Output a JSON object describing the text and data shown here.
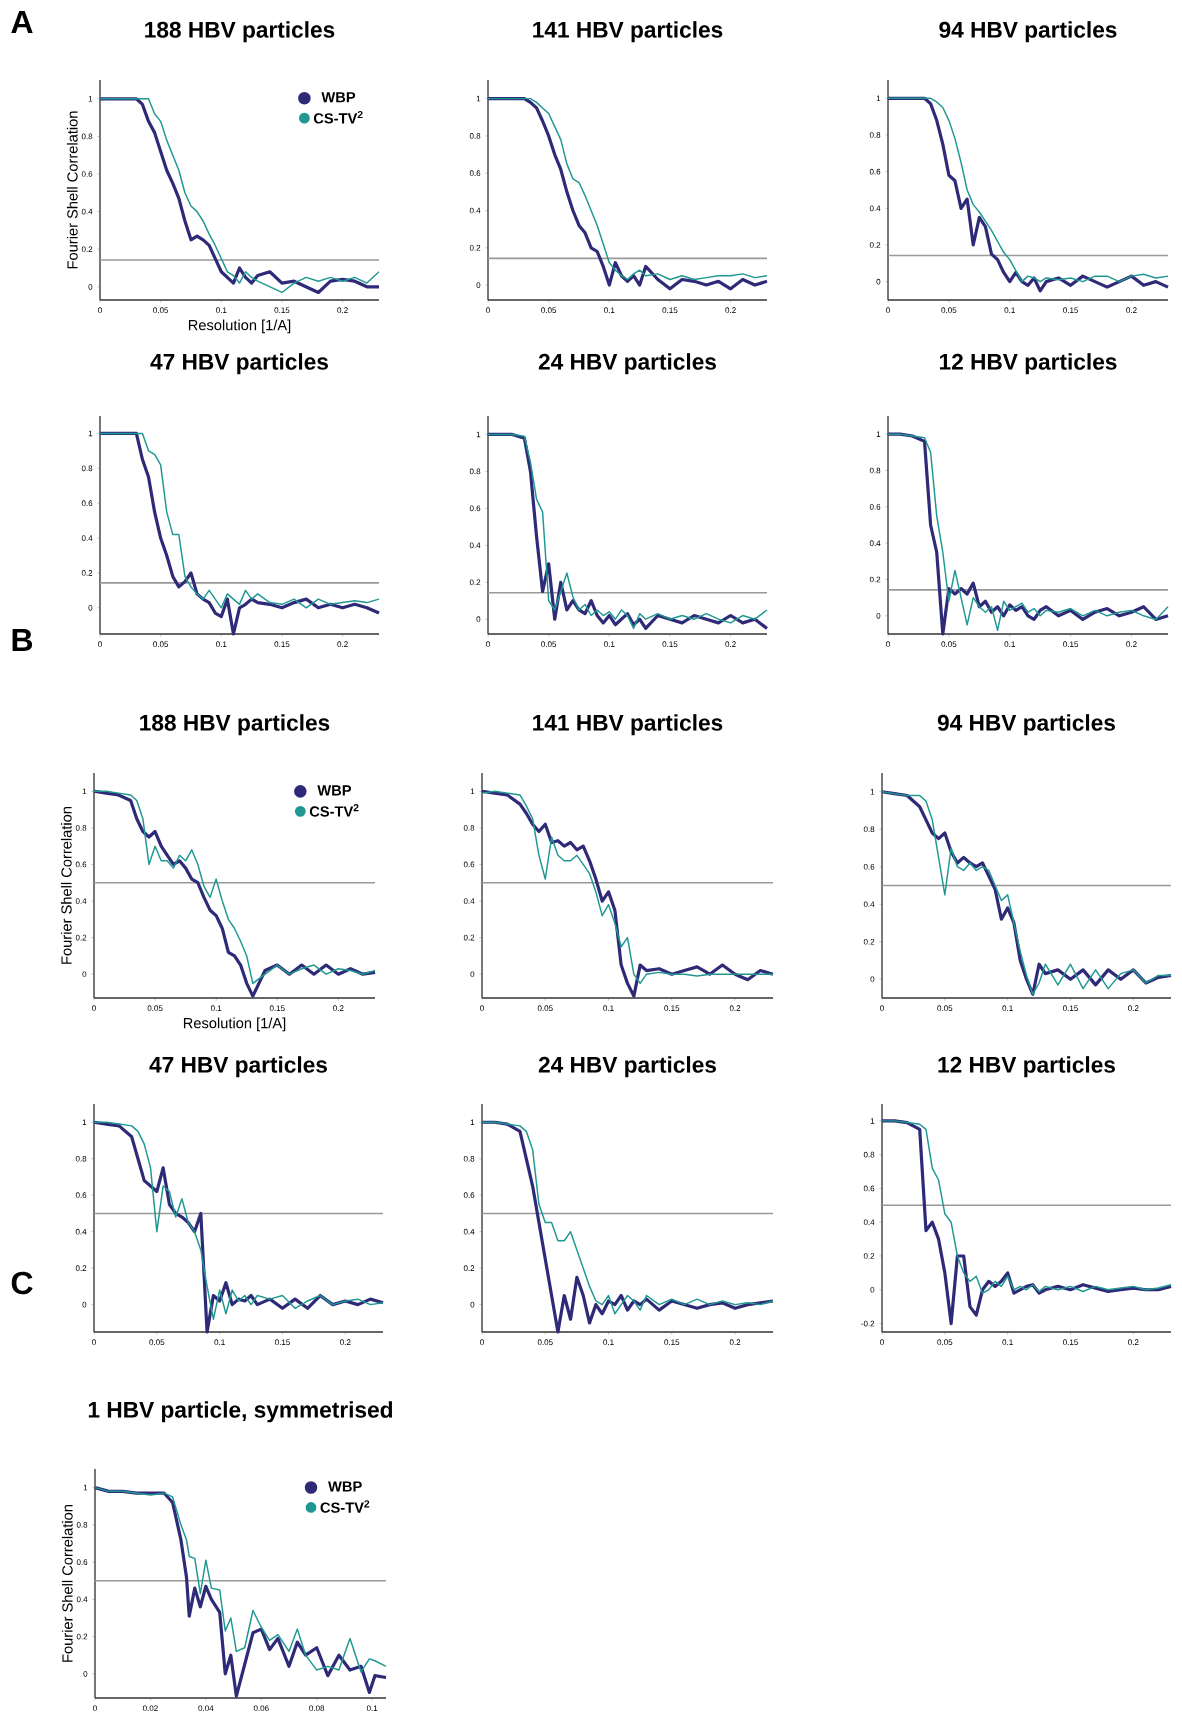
{
  "chart_data": [
    {
      "type": "line",
      "title": "188 HBV particles",
      "xlabel": "Resolution [1/A]",
      "ylabel": "Fourier Shell Correlation",
      "annotations": [
        "A"
      ],
      "legend": "top right",
      "x": [
        0,
        0.01,
        0.02,
        0.03,
        0.035,
        0.04,
        0.045,
        0.05,
        0.055,
        0.06,
        0.065,
        0.07,
        0.075,
        0.08,
        0.085,
        0.09,
        0.095,
        0.1,
        0.105,
        0.11,
        0.115,
        0.12,
        0.125,
        0.13,
        0.14,
        0.15,
        0.16,
        0.17,
        0.18,
        0.19,
        0.2,
        0.21,
        0.22,
        0.23
      ],
      "series": [
        {
          "name": "WBP",
          "color": "#2e2a78",
          "values": [
            1,
            1,
            1,
            1,
            0.97,
            0.88,
            0.82,
            0.72,
            0.62,
            0.55,
            0.47,
            0.35,
            0.25,
            0.27,
            0.25,
            0.22,
            0.15,
            0.08,
            0.05,
            0.02,
            0.1,
            0.05,
            0.02,
            0.06,
            0.08,
            0.02,
            0.03,
            0,
            -0.03,
            0.03,
            0.04,
            0.03,
            0,
            0
          ]
        },
        {
          "name": "CS-TV$^{2}$",
          "color": "#1f9892",
          "values": [
            1,
            1,
            1,
            1,
            1,
            1,
            0.92,
            0.88,
            0.78,
            0.7,
            0.62,
            0.5,
            0.43,
            0.4,
            0.35,
            0.28,
            0.22,
            0.15,
            0.08,
            0.06,
            0.02,
            0.08,
            0.05,
            0.03,
            0,
            -0.03,
            0.02,
            0.05,
            0.03,
            0.05,
            0.03,
            0.05,
            0.02,
            0.08
          ]
        }
      ],
      "xlim": [
        0,
        0.23
      ],
      "ylim": [
        -0.07,
        1.1
      ],
      "xticks": [
        0,
        0.05,
        0.1,
        0.15,
        0.2
      ],
      "yticks": [
        0,
        0.2,
        0.4,
        0.6,
        0.8,
        1
      ],
      "ref_lines": [
        {
          "axis": "y",
          "value": 0.143,
          "color": "#999999"
        }
      ]
    },
    {
      "type": "line",
      "title": "141 HBV particles",
      "x": [
        0,
        0.01,
        0.02,
        0.03,
        0.035,
        0.04,
        0.045,
        0.05,
        0.055,
        0.06,
        0.065,
        0.07,
        0.075,
        0.08,
        0.085,
        0.09,
        0.095,
        0.1,
        0.105,
        0.11,
        0.115,
        0.12,
        0.125,
        0.13,
        0.14,
        0.15,
        0.16,
        0.17,
        0.18,
        0.19,
        0.2,
        0.21,
        0.22,
        0.23
      ],
      "series": [
        {
          "color": "#2e2a78",
          "values": [
            1,
            1,
            1,
            1,
            0.98,
            0.95,
            0.88,
            0.8,
            0.7,
            0.62,
            0.5,
            0.4,
            0.32,
            0.28,
            0.2,
            0.18,
            0.1,
            0,
            0.12,
            0.05,
            0.02,
            0.05,
            0,
            0.1,
            0.03,
            -0.02,
            0.03,
            0.02,
            0,
            0.02,
            -0.02,
            0.03,
            0,
            0.02
          ]
        },
        {
          "color": "#1f9892",
          "values": [
            1,
            1,
            1,
            1,
            1,
            0.98,
            0.95,
            0.92,
            0.85,
            0.78,
            0.65,
            0.57,
            0.55,
            0.48,
            0.4,
            0.32,
            0.22,
            0.12,
            0.08,
            0.05,
            0.03,
            0.06,
            0.08,
            0.05,
            0.06,
            0.03,
            0.05,
            0.03,
            0.04,
            0.05,
            0.05,
            0.06,
            0.04,
            0.05
          ]
        }
      ],
      "xlim": [
        0,
        0.23
      ],
      "ylim": [
        -0.08,
        1.1
      ],
      "xticks": [
        0,
        0.05,
        0.1,
        0.15,
        0.2
      ],
      "yticks": [
        0,
        0.2,
        0.4,
        0.6,
        0.8,
        1
      ],
      "ref_lines": [
        {
          "axis": "y",
          "value": 0.143,
          "color": "#999999"
        }
      ]
    },
    {
      "type": "line",
      "title": "94 HBV particles",
      "x": [
        0,
        0.01,
        0.02,
        0.03,
        0.035,
        0.04,
        0.045,
        0.05,
        0.055,
        0.06,
        0.065,
        0.07,
        0.075,
        0.08,
        0.085,
        0.09,
        0.095,
        0.1,
        0.105,
        0.11,
        0.115,
        0.12,
        0.125,
        0.13,
        0.14,
        0.15,
        0.16,
        0.17,
        0.18,
        0.19,
        0.2,
        0.21,
        0.22,
        0.23
      ],
      "series": [
        {
          "color": "#2e2a78",
          "values": [
            1,
            1,
            1,
            1,
            0.97,
            0.88,
            0.75,
            0.58,
            0.55,
            0.4,
            0.45,
            0.2,
            0.35,
            0.3,
            0.15,
            0.12,
            0.05,
            0,
            0.05,
            0,
            -0.02,
            0.02,
            -0.05,
            0,
            0.02,
            -0.02,
            0.03,
            0,
            -0.03,
            0,
            0.03,
            -0.02,
            0,
            -0.03
          ]
        },
        {
          "color": "#1f9892",
          "values": [
            1,
            1,
            1,
            1,
            1,
            0.98,
            0.95,
            0.88,
            0.78,
            0.65,
            0.5,
            0.42,
            0.38,
            0.33,
            0.28,
            0.22,
            0.16,
            0.12,
            0.06,
            0,
            0.03,
            0.02,
            0,
            0.02,
            0.01,
            0.02,
            0,
            0.03,
            0.03,
            0,
            0.03,
            0.04,
            0.02,
            0.03
          ]
        }
      ],
      "xlim": [
        0,
        0.23
      ],
      "ylim": [
        -0.1,
        1.1
      ],
      "xticks": [
        0,
        0.05,
        0.1,
        0.15,
        0.2
      ],
      "yticks": [
        0,
        0.2,
        0.4,
        0.6,
        0.8,
        1
      ],
      "ref_lines": [
        {
          "axis": "y",
          "value": 0.143,
          "color": "#999999"
        }
      ]
    },
    {
      "type": "line",
      "title": "47 HBV particles",
      "x": [
        0,
        0.01,
        0.02,
        0.03,
        0.035,
        0.04,
        0.045,
        0.05,
        0.055,
        0.06,
        0.065,
        0.07,
        0.075,
        0.08,
        0.085,
        0.09,
        0.095,
        0.1,
        0.105,
        0.11,
        0.115,
        0.12,
        0.125,
        0.13,
        0.14,
        0.15,
        0.16,
        0.17,
        0.18,
        0.19,
        0.2,
        0.21,
        0.22,
        0.23
      ],
      "series": [
        {
          "color": "#2e2a78",
          "values": [
            1,
            1,
            1,
            1,
            0.85,
            0.75,
            0.55,
            0.4,
            0.3,
            0.18,
            0.12,
            0.15,
            0.2,
            0.08,
            0.05,
            0.03,
            -0.03,
            -0.05,
            0.05,
            -0.15,
            0,
            0.02,
            0.05,
            0.03,
            0.02,
            0,
            0.03,
            0.05,
            0,
            0.02,
            0,
            0.02,
            0,
            -0.03
          ]
        },
        {
          "color": "#1f9892",
          "values": [
            1,
            1,
            1,
            1,
            1,
            0.9,
            0.88,
            0.82,
            0.55,
            0.42,
            0.42,
            0.18,
            0.12,
            0.08,
            0.05,
            0.1,
            0.05,
            0,
            0.08,
            0.05,
            0.02,
            0.1,
            0.05,
            0.08,
            0.03,
            0.02,
            0.05,
            0,
            0.05,
            0.02,
            0.03,
            0.04,
            0.03,
            0.05
          ]
        }
      ],
      "xlim": [
        0,
        0.23
      ],
      "ylim": [
        -0.15,
        1.1
      ],
      "xticks": [
        0,
        0.05,
        0.1,
        0.15,
        0.2
      ],
      "yticks": [
        0,
        0.2,
        0.4,
        0.6,
        0.8,
        1
      ],
      "ref_lines": [
        {
          "axis": "y",
          "value": 0.143,
          "color": "#999999"
        }
      ]
    },
    {
      "type": "line",
      "title": "24 HBV particles",
      "x": [
        0,
        0.01,
        0.02,
        0.03,
        0.035,
        0.04,
        0.045,
        0.05,
        0.055,
        0.06,
        0.065,
        0.07,
        0.075,
        0.08,
        0.085,
        0.09,
        0.095,
        0.1,
        0.105,
        0.11,
        0.115,
        0.12,
        0.125,
        0.13,
        0.14,
        0.15,
        0.16,
        0.17,
        0.18,
        0.19,
        0.2,
        0.21,
        0.22,
        0.23
      ],
      "series": [
        {
          "color": "#2e2a78",
          "values": [
            1,
            1,
            1,
            0.98,
            0.8,
            0.45,
            0.15,
            0.3,
            0,
            0.2,
            0.05,
            0.1,
            0.05,
            0.03,
            0.1,
            0.02,
            -0.02,
            0.02,
            -0.03,
            0,
            0.03,
            -0.03,
            0,
            -0.05,
            0.02,
            0,
            -0.02,
            0.02,
            0,
            -0.02,
            0.02,
            -0.02,
            0,
            -0.05
          ]
        },
        {
          "color": "#1f9892",
          "values": [
            1,
            1,
            1,
            0.99,
            0.85,
            0.65,
            0.58,
            0.1,
            0.05,
            0.15,
            0.25,
            0.12,
            0.05,
            0.08,
            0.02,
            0.05,
            0.02,
            0.04,
            0,
            0.05,
            0.02,
            -0.05,
            0.03,
            0,
            0.03,
            0,
            0.02,
            0,
            0.03,
            0,
            -0.02,
            0.02,
            0,
            0.05
          ]
        }
      ],
      "xlim": [
        0,
        0.23
      ],
      "ylim": [
        -0.08,
        1.1
      ],
      "xticks": [
        0,
        0.05,
        0.1,
        0.15,
        0.2
      ],
      "yticks": [
        0,
        0.2,
        0.4,
        0.6,
        0.8,
        1
      ],
      "ref_lines": [
        {
          "axis": "y",
          "value": 0.143,
          "color": "#999999"
        }
      ]
    },
    {
      "type": "line",
      "title": "12 HBV particles",
      "x": [
        0,
        0.01,
        0.02,
        0.03,
        0.035,
        0.04,
        0.045,
        0.05,
        0.055,
        0.06,
        0.065,
        0.07,
        0.075,
        0.08,
        0.085,
        0.09,
        0.095,
        0.1,
        0.105,
        0.11,
        0.115,
        0.12,
        0.125,
        0.13,
        0.14,
        0.15,
        0.16,
        0.17,
        0.18,
        0.19,
        0.2,
        0.21,
        0.22,
        0.23
      ],
      "series": [
        {
          "color": "#2e2a78",
          "values": [
            1,
            1,
            0.99,
            0.96,
            0.5,
            0.35,
            -0.1,
            0.15,
            0.12,
            0.15,
            0.12,
            0.18,
            0.05,
            0.08,
            0.02,
            0.05,
            0,
            0.06,
            0.03,
            0.05,
            0,
            -0.02,
            0.03,
            0.05,
            0,
            0.03,
            -0.02,
            0.02,
            0.04,
            0,
            0.02,
            0.05,
            -0.02,
            0
          ]
        },
        {
          "color": "#1f9892",
          "values": [
            1,
            1,
            0.99,
            0.98,
            0.9,
            0.55,
            0.35,
            0.08,
            0.25,
            0.1,
            -0.05,
            0.1,
            0.05,
            0.02,
            0.05,
            -0.08,
            0.08,
            0.03,
            0.05,
            0.07,
            0.02,
            0.04,
            0,
            0.03,
            0.02,
            0.04,
            0,
            0.03,
            0,
            0.02,
            0.03,
            0,
            -0.02,
            0.05
          ]
        }
      ],
      "xlim": [
        0,
        0.23
      ],
      "ylim": [
        -0.1,
        1.1
      ],
      "xticks": [
        0,
        0.05,
        0.1,
        0.15,
        0.2
      ],
      "yticks": [
        0,
        0.2,
        0.4,
        0.6,
        0.8,
        1
      ],
      "ref_lines": [
        {
          "axis": "y",
          "value": 0.143,
          "color": "#999999"
        }
      ]
    },
    {
      "type": "line",
      "title": "188 HBV particles",
      "xlabel": "Resolution [1/A]",
      "ylabel": "Fourier Shell Correlation",
      "annotations": [
        "B"
      ],
      "legend": "top right",
      "x": [
        0,
        0.01,
        0.02,
        0.03,
        0.035,
        0.04,
        0.045,
        0.05,
        0.055,
        0.06,
        0.065,
        0.07,
        0.075,
        0.08,
        0.085,
        0.09,
        0.095,
        0.1,
        0.105,
        0.11,
        0.115,
        0.12,
        0.125,
        0.13,
        0.14,
        0.15,
        0.16,
        0.17,
        0.18,
        0.19,
        0.2,
        0.21,
        0.22,
        0.23
      ],
      "series": [
        {
          "name": "WBP",
          "color": "#2e2a78",
          "values": [
            1,
            0.99,
            0.98,
            0.95,
            0.85,
            0.78,
            0.75,
            0.78,
            0.7,
            0.65,
            0.6,
            0.62,
            0.58,
            0.52,
            0.5,
            0.42,
            0.35,
            0.32,
            0.25,
            0.12,
            0.1,
            0.05,
            -0.05,
            -0.12,
            0.02,
            0.05,
            0,
            0.05,
            0,
            0.05,
            0,
            0.03,
            0,
            0.01
          ]
        },
        {
          "name": "CS-TV$^{2}$",
          "color": "#1f9892",
          "values": [
            1,
            1,
            0.99,
            0.98,
            0.95,
            0.85,
            0.6,
            0.7,
            0.62,
            0.62,
            0.58,
            0.65,
            0.62,
            0.68,
            0.6,
            0.48,
            0.42,
            0.52,
            0.4,
            0.3,
            0.25,
            0.18,
            0.1,
            -0.05,
            0,
            0.05,
            0,
            0.03,
            0.05,
            0,
            0.03,
            0.02,
            0,
            0.02
          ]
        }
      ],
      "xlim": [
        0,
        0.23
      ],
      "ylim": [
        -0.13,
        1.1
      ],
      "xticks": [
        0,
        0.05,
        0.1,
        0.15,
        0.2
      ],
      "yticks": [
        0,
        0.2,
        0.4,
        0.6,
        0.8,
        1
      ],
      "ref_lines": [
        {
          "axis": "y",
          "value": 0.5,
          "color": "#999999"
        }
      ]
    },
    {
      "type": "line",
      "title": "141 HBV particles",
      "x": [
        0,
        0.01,
        0.02,
        0.03,
        0.035,
        0.04,
        0.045,
        0.05,
        0.055,
        0.06,
        0.065,
        0.07,
        0.075,
        0.08,
        0.085,
        0.09,
        0.095,
        0.1,
        0.105,
        0.11,
        0.115,
        0.12,
        0.125,
        0.13,
        0.14,
        0.15,
        0.16,
        0.17,
        0.18,
        0.19,
        0.2,
        0.21,
        0.22,
        0.23
      ],
      "series": [
        {
          "color": "#2e2a78",
          "values": [
            1,
            0.99,
            0.98,
            0.93,
            0.88,
            0.82,
            0.78,
            0.82,
            0.72,
            0.73,
            0.7,
            0.72,
            0.68,
            0.7,
            0.62,
            0.52,
            0.4,
            0.45,
            0.35,
            0.05,
            -0.05,
            -0.12,
            0.05,
            0.02,
            0.03,
            0,
            0.02,
            0.04,
            0,
            0.05,
            0,
            -0.03,
            0.02,
            0
          ]
        },
        {
          "color": "#1f9892",
          "values": [
            0.99,
            1,
            0.99,
            0.98,
            0.92,
            0.85,
            0.65,
            0.52,
            0.75,
            0.65,
            0.62,
            0.62,
            0.65,
            0.6,
            0.55,
            0.45,
            0.32,
            0.38,
            0.28,
            0.15,
            0.2,
            0,
            -0.05,
            0,
            0.01,
            0,
            0,
            -0.01,
            0,
            0,
            0,
            0,
            0,
            0
          ]
        }
      ],
      "xlim": [
        0,
        0.23
      ],
      "ylim": [
        -0.13,
        1.1
      ],
      "xticks": [
        0,
        0.05,
        0.1,
        0.15,
        0.2
      ],
      "yticks": [
        0,
        0.2,
        0.4,
        0.6,
        0.8,
        1
      ],
      "ref_lines": [
        {
          "axis": "y",
          "value": 0.5,
          "color": "#999999"
        }
      ]
    },
    {
      "type": "line",
      "title": "94 HBV particles",
      "x": [
        0,
        0.01,
        0.02,
        0.03,
        0.035,
        0.04,
        0.045,
        0.05,
        0.055,
        0.06,
        0.065,
        0.07,
        0.075,
        0.08,
        0.085,
        0.09,
        0.095,
        0.1,
        0.105,
        0.11,
        0.115,
        0.12,
        0.125,
        0.13,
        0.14,
        0.15,
        0.16,
        0.17,
        0.18,
        0.19,
        0.2,
        0.21,
        0.22,
        0.23
      ],
      "series": [
        {
          "color": "#2e2a78",
          "values": [
            1,
            0.99,
            0.98,
            0.92,
            0.85,
            0.78,
            0.75,
            0.78,
            0.68,
            0.62,
            0.65,
            0.62,
            0.6,
            0.62,
            0.55,
            0.48,
            0.32,
            0.38,
            0.3,
            0.1,
            0,
            -0.08,
            0.08,
            0.03,
            0.05,
            0,
            0.05,
            -0.03,
            0.05,
            0,
            0.05,
            -0.02,
            0.01,
            0.02
          ]
        },
        {
          "color": "#1f9892",
          "values": [
            1,
            0.99,
            0.98,
            0.98,
            0.95,
            0.85,
            0.65,
            0.45,
            0.7,
            0.6,
            0.58,
            0.62,
            0.58,
            0.6,
            0.58,
            0.5,
            0.42,
            0.45,
            0.3,
            0.15,
            0.02,
            -0.08,
            -0.02,
            0.08,
            -0.03,
            0.08,
            -0.05,
            0.05,
            -0.05,
            0.03,
            0.05,
            -0.02,
            0.02,
            0.02
          ]
        }
      ],
      "xlim": [
        0,
        0.23
      ],
      "ylim": [
        -0.1,
        1.1
      ],
      "xticks": [
        0,
        0.05,
        0.1,
        0.15,
        0.2
      ],
      "yticks": [
        0,
        0.2,
        0.4,
        0.6,
        0.8,
        1
      ],
      "ref_lines": [
        {
          "axis": "y",
          "value": 0.5,
          "color": "#999999"
        }
      ]
    },
    {
      "type": "line",
      "title": "47 HBV particles",
      "x": [
        0,
        0.01,
        0.02,
        0.03,
        0.035,
        0.04,
        0.045,
        0.05,
        0.055,
        0.06,
        0.065,
        0.07,
        0.075,
        0.08,
        0.085,
        0.09,
        0.095,
        0.1,
        0.105,
        0.11,
        0.115,
        0.12,
        0.125,
        0.13,
        0.14,
        0.15,
        0.16,
        0.17,
        0.18,
        0.19,
        0.2,
        0.21,
        0.22,
        0.23
      ],
      "series": [
        {
          "color": "#2e2a78",
          "values": [
            1,
            0.99,
            0.98,
            0.92,
            0.8,
            0.68,
            0.65,
            0.62,
            0.75,
            0.55,
            0.5,
            0.48,
            0.45,
            0.4,
            0.5,
            -0.15,
            0.05,
            0.02,
            0.12,
            0,
            0.03,
            0.02,
            0.05,
            0,
            0.03,
            -0.02,
            0.03,
            -0.02,
            0.05,
            0,
            0.02,
            0,
            0.03,
            0.01
          ]
        },
        {
          "color": "#1f9892",
          "values": [
            1,
            1,
            0.99,
            0.98,
            0.95,
            0.88,
            0.75,
            0.4,
            0.65,
            0.62,
            0.48,
            0.58,
            0.45,
            0.4,
            0.3,
            0.1,
            -0.08,
            0.08,
            -0.05,
            0.08,
            0.02,
            0.05,
            0,
            0.05,
            0.03,
            0.05,
            -0.02,
            0.02,
            0.05,
            0,
            0.02,
            0.03,
            0,
            0.01
          ]
        }
      ],
      "xlim": [
        0,
        0.23
      ],
      "ylim": [
        -0.15,
        1.1
      ],
      "xticks": [
        0,
        0.05,
        0.1,
        0.15,
        0.2
      ],
      "yticks": [
        0,
        0.2,
        0.4,
        0.6,
        0.8,
        1
      ],
      "ref_lines": [
        {
          "axis": "y",
          "value": 0.5,
          "color": "#999999"
        }
      ]
    },
    {
      "type": "line",
      "title": "24 HBV particles",
      "x": [
        0,
        0.01,
        0.02,
        0.03,
        0.035,
        0.04,
        0.045,
        0.05,
        0.055,
        0.06,
        0.065,
        0.07,
        0.075,
        0.08,
        0.085,
        0.09,
        0.095,
        0.1,
        0.105,
        0.11,
        0.115,
        0.12,
        0.125,
        0.13,
        0.14,
        0.15,
        0.16,
        0.17,
        0.18,
        0.19,
        0.2,
        0.21,
        0.22,
        0.23
      ],
      "series": [
        {
          "color": "#2e2a78",
          "values": [
            1,
            1,
            0.99,
            0.95,
            0.8,
            0.65,
            0.45,
            0.25,
            0.05,
            -0.15,
            0.05,
            -0.08,
            0.15,
            0.05,
            -0.1,
            0,
            -0.05,
            0.02,
            0,
            0.05,
            -0.03,
            0.02,
            0,
            0.03,
            -0.03,
            0.02,
            0,
            -0.02,
            0,
            0.01,
            -0.02,
            0,
            0.01,
            0.02
          ]
        },
        {
          "color": "#1f9892",
          "values": [
            1,
            1,
            0.99,
            0.98,
            0.95,
            0.85,
            0.55,
            0.45,
            0.45,
            0.35,
            0.35,
            0.4,
            0.3,
            0.2,
            0.1,
            0.02,
            0,
            0.05,
            -0.05,
            0,
            0.05,
            0.02,
            -0.03,
            0.05,
            0,
            0.03,
            0,
            0.03,
            0,
            0.02,
            0,
            0.01,
            0,
            0.02
          ]
        }
      ],
      "xlim": [
        0,
        0.23
      ],
      "ylim": [
        -0.15,
        1.1
      ],
      "xticks": [
        0,
        0.05,
        0.1,
        0.15,
        0.2
      ],
      "yticks": [
        0,
        0.2,
        0.4,
        0.6,
        0.8,
        1
      ],
      "ref_lines": [
        {
          "axis": "y",
          "value": 0.5,
          "color": "#999999"
        }
      ]
    },
    {
      "type": "line",
      "title": "12 HBV particles",
      "x": [
        0,
        0.01,
        0.02,
        0.03,
        0.035,
        0.04,
        0.045,
        0.05,
        0.055,
        0.06,
        0.065,
        0.07,
        0.075,
        0.08,
        0.085,
        0.09,
        0.095,
        0.1,
        0.105,
        0.11,
        0.115,
        0.12,
        0.125,
        0.13,
        0.14,
        0.15,
        0.16,
        0.17,
        0.18,
        0.19,
        0.2,
        0.21,
        0.22,
        0.23
      ],
      "series": [
        {
          "color": "#2e2a78",
          "values": [
            1,
            1,
            0.99,
            0.95,
            0.35,
            0.4,
            0.3,
            0.1,
            -0.2,
            0.2,
            0.2,
            -0.1,
            -0.15,
            0,
            0.05,
            0.02,
            0.05,
            0.1,
            -0.02,
            0,
            0.02,
            0.03,
            -0.02,
            0,
            0.02,
            0,
            0.03,
            0.01,
            -0.01,
            0,
            0.01,
            0,
            0,
            0.02
          ]
        },
        {
          "color": "#1f9892",
          "values": [
            1,
            1,
            0.99,
            0.98,
            0.95,
            0.72,
            0.65,
            0.45,
            0.4,
            0.2,
            0.1,
            0.05,
            0.08,
            -0.02,
            0,
            0.05,
            0.02,
            0.08,
            0,
            0.02,
            0,
            0.03,
            -0.01,
            0.02,
            0,
            0.02,
            -0.01,
            0.02,
            0,
            0.01,
            0.02,
            0,
            0.01,
            0.03
          ]
        }
      ],
      "xlim": [
        0,
        0.23
      ],
      "ylim": [
        -0.25,
        1.1
      ],
      "xticks": [
        0,
        0.05,
        0.1,
        0.15,
        0.2
      ],
      "yticks": [
        -0.2,
        0,
        0.2,
        0.4,
        0.6,
        0.8,
        1
      ],
      "ref_lines": [
        {
          "axis": "y",
          "value": 0.5,
          "color": "#999999"
        }
      ]
    },
    {
      "type": "line",
      "title": "1 HBV particle, symmetrised",
      "ylabel": "Fourier Shell Correlation",
      "annotations": [
        "C"
      ],
      "legend": "top right",
      "x": [
        0,
        0.005,
        0.01,
        0.015,
        0.02,
        0.025,
        0.028,
        0.031,
        0.033,
        0.034,
        0.036,
        0.038,
        0.04,
        0.042,
        0.045,
        0.047,
        0.049,
        0.051,
        0.054,
        0.057,
        0.06,
        0.063,
        0.066,
        0.07,
        0.073,
        0.076,
        0.08,
        0.084,
        0.088,
        0.092,
        0.096,
        0.099,
        0.101,
        0.105
      ],
      "series": [
        {
          "name": "WBP",
          "color": "#2e2a78",
          "values": [
            1.0,
            0.98,
            0.98,
            0.97,
            0.97,
            0.97,
            0.92,
            0.72,
            0.52,
            0.31,
            0.46,
            0.36,
            0.47,
            0.4,
            0.33,
            0.0,
            0.1,
            -0.12,
            0.05,
            0.22,
            0.24,
            0.13,
            0.19,
            0.04,
            0.17,
            0.1,
            0.14,
            -0.01,
            0.1,
            0.02,
            0.04,
            -0.1,
            -0.01,
            -0.02
          ]
        },
        {
          "name": "CS-TV$^{2}$",
          "color": "#1f9892",
          "values": [
            1.0,
            0.98,
            0.98,
            0.97,
            0.96,
            0.97,
            0.95,
            0.8,
            0.72,
            0.63,
            0.62,
            0.43,
            0.61,
            0.46,
            0.45,
            0.23,
            0.3,
            0.12,
            0.14,
            0.34,
            0.25,
            0.18,
            0.21,
            0.12,
            0.24,
            0.1,
            0.02,
            0.04,
            0.02,
            0.19,
            0.01,
            0.08,
            0.07,
            0.04
          ]
        }
      ],
      "xlim": [
        0,
        0.105
      ],
      "ylim": [
        -0.13,
        1.1
      ],
      "xticks": [
        0,
        0.02,
        0.04,
        0.06,
        0.08,
        0.1
      ],
      "yticks": [
        0,
        0.2,
        0.4,
        0.6,
        0.8,
        1
      ],
      "ref_lines": [
        {
          "axis": "y",
          "value": 0.5,
          "color": "#999999"
        }
      ]
    }
  ]
}
